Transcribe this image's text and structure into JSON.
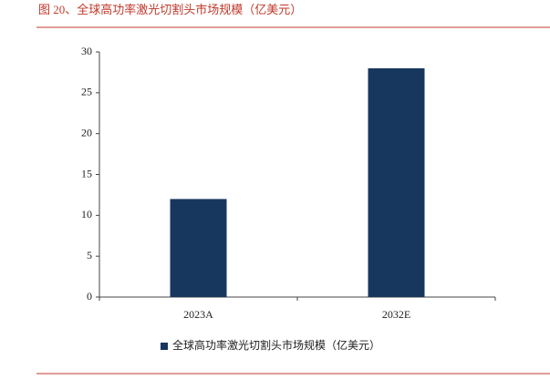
{
  "chart_data": {
    "type": "bar",
    "title": "图 20、全球高功率激光切割头市场规模（亿美元）",
    "categories": [
      "2023A",
      "2032E"
    ],
    "series": [
      {
        "name": "全球高功率激光切割头市场规模（亿美元）",
        "color": "#17375e",
        "values": [
          12,
          28
        ]
      }
    ],
    "ylim": [
      0,
      30
    ],
    "yticks": [
      0,
      5,
      10,
      15,
      20,
      25,
      30
    ],
    "legend": "bottom"
  }
}
